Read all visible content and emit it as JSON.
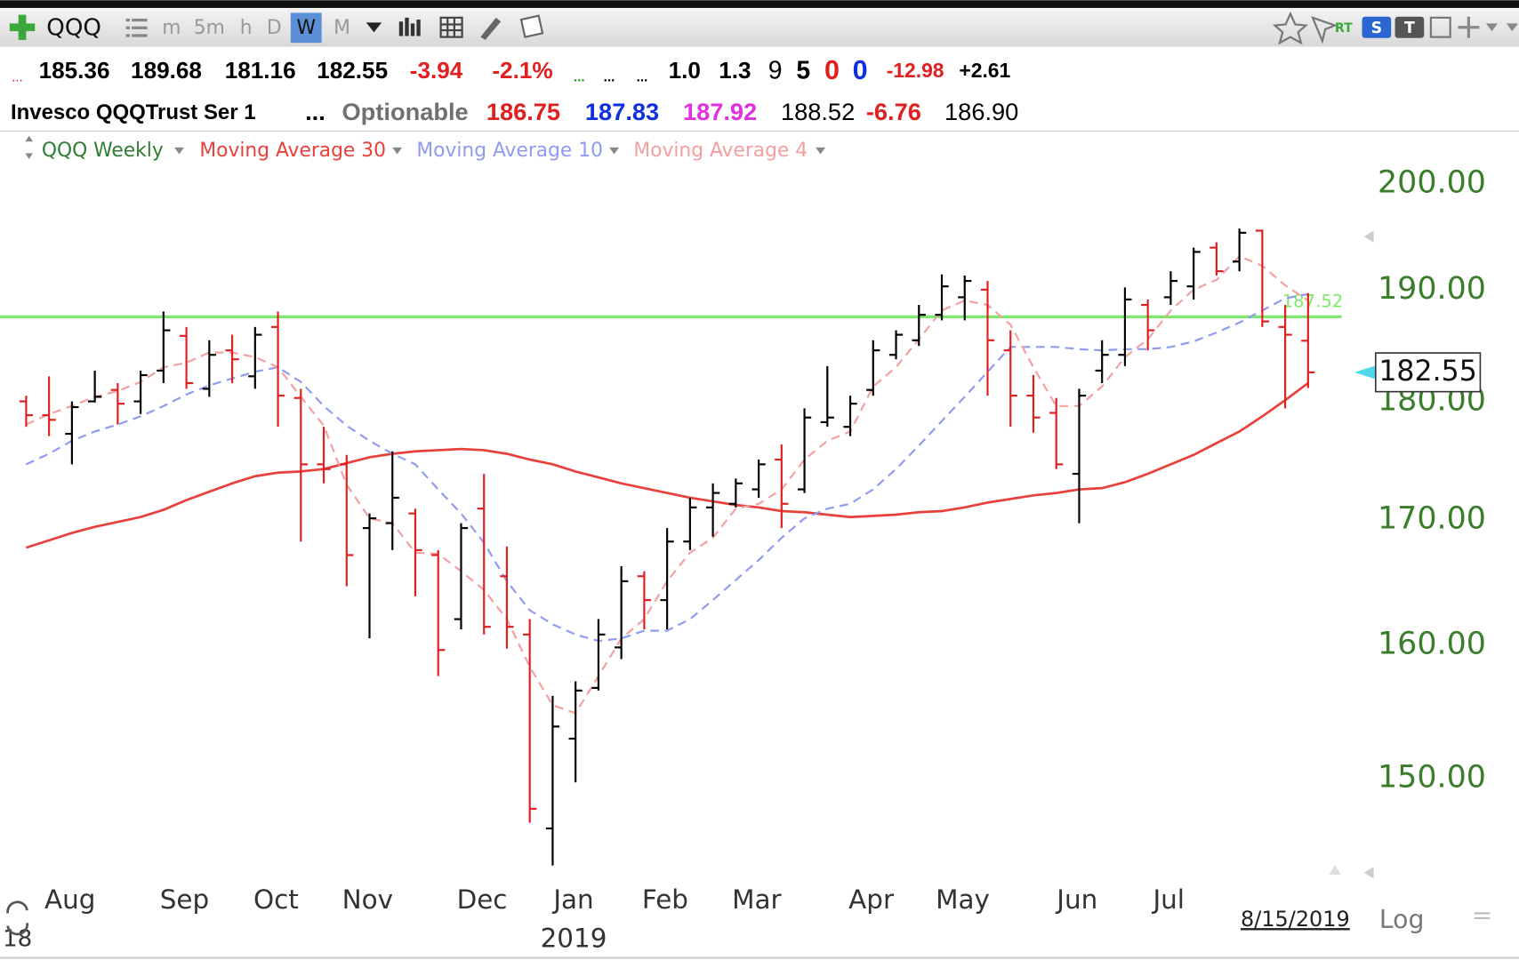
{
  "toolbar": {
    "symbol": "QQQ",
    "intervals": [
      "m",
      "5m",
      "h",
      "D",
      "W",
      "M"
    ],
    "active_interval": 4,
    "right_labels": [
      "RT",
      "S",
      "T"
    ]
  },
  "quote_row_1": [
    {
      "text": "...",
      "color": "#d02020"
    },
    {
      "text": "185.36",
      "color": "#000000"
    },
    {
      "text": "189.68",
      "color": "#000000"
    },
    {
      "text": "181.16",
      "color": "#000000"
    },
    {
      "text": "182.55",
      "color": "#000000"
    },
    {
      "text": "-3.94",
      "color": "#e02020"
    },
    {
      "text": "-2.1%",
      "color": "#e02020"
    },
    {
      "text": "...",
      "color": "#20a020"
    },
    {
      "text": "...",
      "color": "#000000"
    },
    {
      "text": "...",
      "color": "#000000"
    },
    {
      "text": "1.0",
      "color": "#000000"
    },
    {
      "text": "1.3",
      "color": "#000000"
    },
    {
      "text": "9",
      "color": "#000000"
    },
    {
      "text": "5",
      "color": "#000000"
    },
    {
      "text": "0",
      "color": "#e02020"
    },
    {
      "text": "0",
      "color": "#1030e0"
    },
    {
      "text": "-12.98",
      "color": "#e02020"
    },
    {
      "text": "+2.61",
      "color": "#000000"
    }
  ],
  "quote_row_2": [
    {
      "text": "Invesco QQQTrust Ser 1",
      "color": "#000000"
    },
    {
      "text": "...",
      "color": "#000000"
    },
    {
      "text": "Optionable",
      "color": "#707070"
    },
    {
      "text": "186.75",
      "color": "#e02020"
    },
    {
      "text": "187.83",
      "color": "#1030e0"
    },
    {
      "text": "187.92",
      "color": "#e030e0"
    },
    {
      "text": "188.52",
      "color": "#000000"
    },
    {
      "text": "-6.76",
      "color": "#e02020"
    },
    {
      "text": "186.90",
      "color": "#000000"
    }
  ],
  "chart_data": {
    "type": "ohlc",
    "name": "QQQ Weekly",
    "name_color": "#2e7d32",
    "up_color": "#000000",
    "down_color": "#e02020",
    "log": true,
    "grid": false,
    "ylim": [
      142.7,
      202.3
    ],
    "yticks": [
      {
        "value": 150,
        "label": "150.00"
      },
      {
        "value": 160,
        "label": "160.00"
      },
      {
        "value": 170,
        "label": "170.00"
      },
      {
        "value": 180,
        "label": "180.00"
      },
      {
        "value": 190,
        "label": "190.00"
      },
      {
        "value": 200,
        "label": "200.00"
      }
    ],
    "axis_color": "#3a7d2a",
    "categories": [
      null,
      null,
      "Aug",
      null,
      null,
      null,
      null,
      "Sep",
      null,
      null,
      null,
      "Oct",
      null,
      null,
      null,
      "Nov",
      null,
      null,
      null,
      null,
      "Dec",
      null,
      null,
      null,
      "Jan",
      null,
      null,
      null,
      "Feb",
      null,
      null,
      null,
      "Mar",
      null,
      null,
      null,
      null,
      "Apr",
      null,
      null,
      null,
      "May",
      null,
      null,
      null,
      null,
      "Jun",
      null,
      null,
      null,
      "Jul",
      null,
      null,
      null,
      null,
      null,
      null
    ],
    "open": [
      180,
      178.8,
      177.2,
      180,
      181,
      180,
      182.7,
      185.8,
      181.1,
      184.5,
      182.2,
      186.6,
      180.3,
      174.6,
      174.6,
      169.3,
      169.7,
      170.5,
      167.1,
      162,
      170.9,
      165.4,
      160.8,
      146.4,
      152.9,
      156.7,
      159.8,
      165.4,
      163.5,
      168.2,
      171,
      171.3,
      172.5,
      175,
      172.5,
      178.2,
      177.8,
      181,
      184.1,
      185.4,
      187.7,
      189.3,
      190,
      184.5,
      180.5,
      179,
      173.8,
      182.7,
      184.1,
      188.6,
      189.3,
      190.3,
      193.9,
      192.6,
      195.5,
      186.6,
      185.36
    ],
    "high": [
      180.5,
      182.2,
      180,
      182.7,
      181.6,
      182.7,
      188,
      186.6,
      185.4,
      185.9,
      186.6,
      188,
      181.1,
      177.8,
      175.4,
      170.5,
      175.7,
      170.9,
      167.5,
      169.7,
      173.8,
      167.8,
      162,
      156.1,
      157.2,
      162,
      166.2,
      165.8,
      169.3,
      171.8,
      173,
      173.4,
      175,
      176.3,
      179.4,
      183.1,
      180.5,
      185.4,
      186.3,
      188.6,
      191.4,
      191.3,
      190.8,
      186.3,
      182.3,
      180.3,
      181.1,
      185.4,
      190.2,
      189.1,
      191.7,
      193.9,
      194.4,
      195.7,
      195.6,
      188.6,
      189.68
    ],
    "low": [
      177.8,
      177,
      174.6,
      179.9,
      178,
      178.9,
      181.6,
      181.1,
      180.4,
      181.6,
      181.1,
      177.8,
      168.2,
      173,
      164.6,
      160.5,
      167.5,
      163.8,
      157.6,
      161.2,
      160.8,
      159.7,
      146.8,
      143.8,
      149.7,
      156.5,
      158.9,
      161.2,
      161.2,
      167.5,
      168.6,
      171,
      171.8,
      169.3,
      172.2,
      177.8,
      177,
      180.5,
      183.7,
      184.9,
      187.2,
      187.2,
      180.5,
      177.8,
      177.3,
      174.2,
      169.7,
      181.6,
      183.1,
      184.5,
      188.6,
      189.1,
      191.3,
      191.7,
      186.6,
      179.4,
      181.16
    ],
    "close": [
      178.8,
      178.4,
      179.5,
      180.4,
      179.8,
      182.3,
      186.3,
      181.6,
      184.1,
      183.7,
      185.9,
      180.5,
      174.6,
      174.2,
      167.1,
      170.1,
      171.8,
      167.5,
      159.6,
      169.3,
      161.4,
      161.4,
      147.8,
      153.8,
      156.5,
      160.8,
      165,
      163.5,
      168.2,
      171,
      172.2,
      173,
      174.6,
      171.3,
      178.6,
      178.6,
      179.8,
      184.5,
      185.9,
      187.7,
      190.3,
      190.8,
      185.4,
      180.5,
      178.6,
      174.6,
      180.5,
      184.1,
      189.1,
      186.3,
      190.8,
      193.5,
      191.7,
      195.3,
      187.1,
      185.9,
      182.55
    ],
    "series": [
      {
        "name": "Moving Average 30",
        "color": "#e8413c",
        "dashed": false,
        "values": [
          167.7,
          168.3,
          168.9,
          169.4,
          169.8,
          170.2,
          170.8,
          171.6,
          172.3,
          173,
          173.6,
          173.9,
          174,
          174.2,
          174.7,
          175.2,
          175.5,
          175.7,
          175.8,
          175.9,
          175.8,
          175.5,
          175,
          174.6,
          174,
          173.5,
          173,
          172.6,
          172.2,
          171.8,
          171.5,
          171.2,
          171,
          170.7,
          170.6,
          170.4,
          170.2,
          170.3,
          170.4,
          170.6,
          170.7,
          171,
          171.4,
          171.7,
          172,
          172.2,
          172.5,
          172.6,
          173.1,
          173.8,
          174.6,
          175.4,
          176.4,
          177.4,
          178.7,
          180.1,
          181.6
        ]
      },
      {
        "name": "Moving Average 10",
        "color": "#8f9bf0",
        "dashed": true,
        "values": [
          174.6,
          175.5,
          176.6,
          177.4,
          178,
          178.7,
          179.6,
          180.6,
          181.4,
          182,
          182.6,
          183,
          181.7,
          179.6,
          177.9,
          176.6,
          175.5,
          174.6,
          172.5,
          170.5,
          168.1,
          165,
          162.7,
          161.6,
          160.8,
          160.3,
          160.5,
          161.1,
          161.1,
          162,
          163.5,
          165.1,
          166.7,
          168.5,
          170.1,
          170.9,
          171.3,
          172.5,
          174.2,
          176.2,
          178.3,
          180.4,
          182.6,
          184.8,
          184.8,
          184.8,
          184.6,
          184.5,
          184.6,
          184.6,
          184.8,
          185.3,
          186.1,
          187,
          188.1,
          189.2,
          189.6
        ]
      },
      {
        "name": "Moving Average 4",
        "color": "#f4a0a0",
        "dashed": true,
        "values": [
          178,
          178.9,
          179.6,
          180.4,
          180.9,
          181.7,
          183,
          183.4,
          184.3,
          184.3,
          183.9,
          183,
          180.4,
          177.9,
          172.9,
          170.1,
          169.7,
          167.3,
          167.2,
          165.8,
          164.3,
          162,
          158.3,
          155.4,
          154.8,
          157.6,
          160.5,
          162,
          165,
          167.3,
          168.5,
          170.9,
          171.3,
          172.5,
          175,
          176.6,
          177.4,
          181.3,
          183,
          185.5,
          188.1,
          189,
          188.6,
          186.8,
          183,
          179.6,
          179.6,
          181.3,
          183.9,
          185.5,
          188.1,
          190,
          190.9,
          193.1,
          192.2,
          190.4,
          189
        ]
      }
    ],
    "hline": {
      "value": 187.52,
      "label": "187.52",
      "color": "#7de86a"
    },
    "last_price": {
      "value": 182.55,
      "label": "182.55"
    },
    "year_label": "2019",
    "prev_year_label": "18",
    "date_label": "8/15/2019",
    "scale_label": "Log"
  }
}
